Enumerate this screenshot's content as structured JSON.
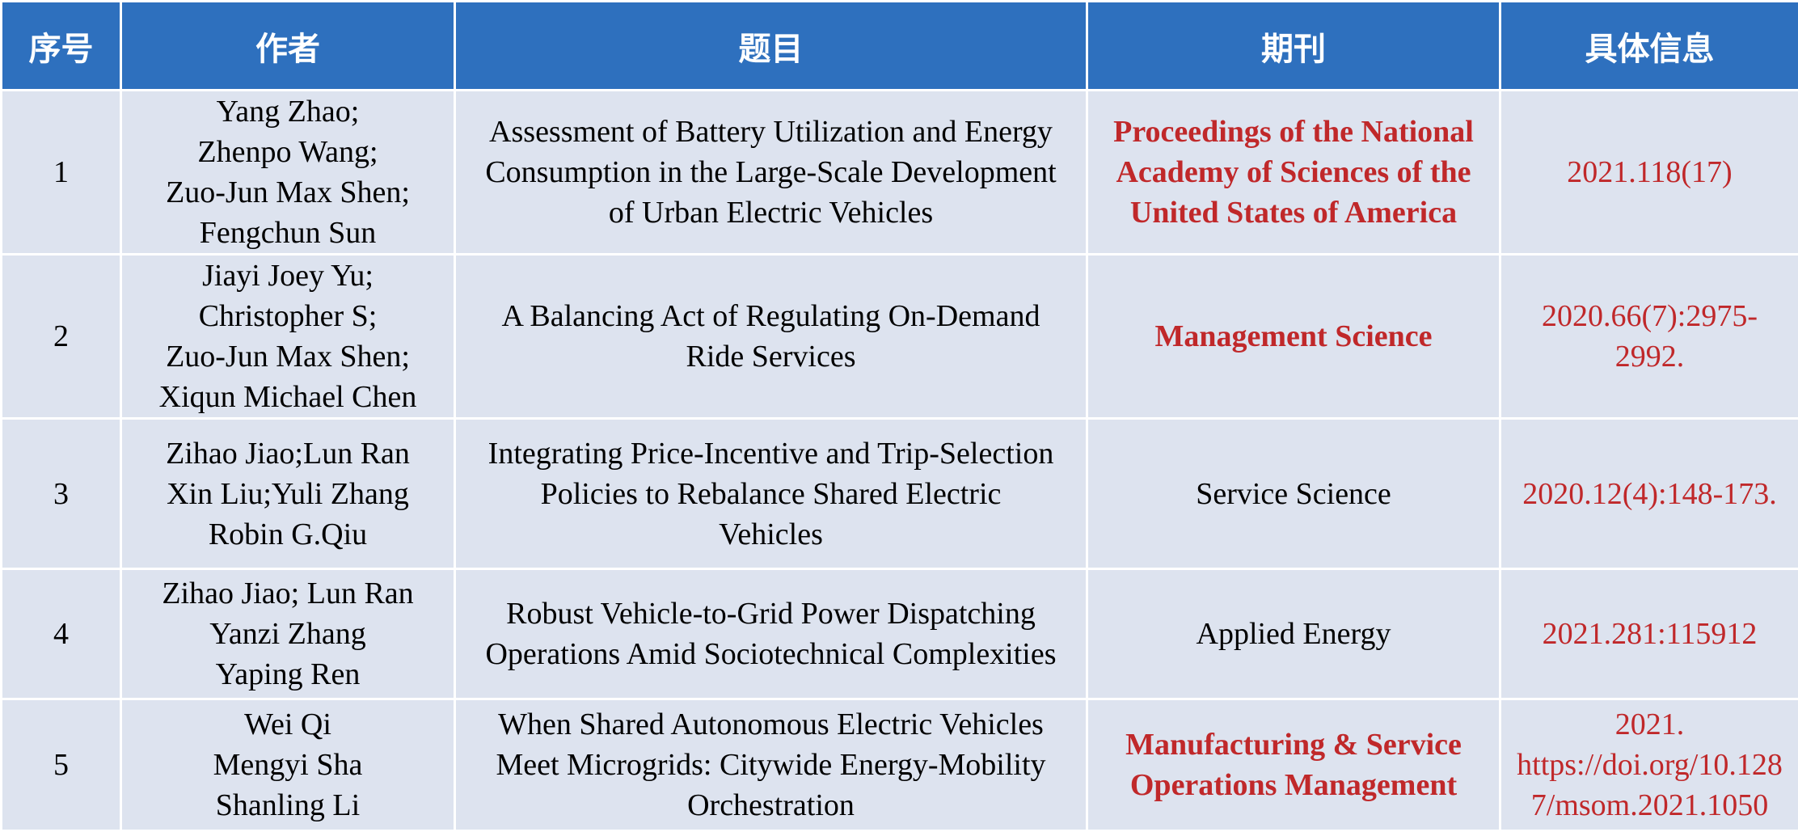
{
  "headers": [
    "序号",
    "作者",
    "题目",
    "期刊",
    "具体信息"
  ],
  "colors": {
    "header_bg": "#2E70BE",
    "row_bg": "#DDE3EF",
    "accent_red": "#C0282A"
  },
  "rows": [
    {
      "num": "1",
      "authors": [
        "Yang Zhao;",
        "Zhenpo Wang;",
        "Zuo-Jun Max Shen;",
        "Fengchun Sun"
      ],
      "title": [
        "Assessment of Battery Utilization and Energy",
        "Consumption in the Large-Scale Development",
        "of Urban Electric Vehicles"
      ],
      "journal": [
        "Proceedings of the National",
        "Academy of Sciences of the",
        "United States of America"
      ],
      "info": [
        "2021.118(17)"
      ]
    },
    {
      "num": "2",
      "authors": [
        "Jiayi Joey Yu;",
        "Christopher S;",
        "Zuo-Jun Max Shen;",
        "Xiqun Michael Chen"
      ],
      "title": [
        "A Balancing Act of Regulating On-Demand",
        "Ride Services"
      ],
      "journal": [
        "Management Science"
      ],
      "info": [
        "2020.66(7):2975-",
        "2992."
      ]
    },
    {
      "num": "3",
      "authors": [
        "Zihao Jiao;Lun Ran",
        "Xin Liu;Yuli Zhang",
        "Robin G.Qiu"
      ],
      "title": [
        "Integrating Price-Incentive and Trip-Selection",
        "Policies to Rebalance Shared Electric",
        "Vehicles"
      ],
      "journal": [
        "Service Science"
      ],
      "info": [
        "2020.12(4):148-173."
      ]
    },
    {
      "num": "4",
      "authors": [
        "Zihao Jiao; Lun Ran",
        "Yanzi Zhang",
        "Yaping Ren"
      ],
      "title": [
        "Robust Vehicle-to-Grid Power Dispatching",
        "Operations Amid Sociotechnical Complexities"
      ],
      "journal": [
        "Applied Energy"
      ],
      "info": [
        "2021.281:115912"
      ]
    },
    {
      "num": "5",
      "authors": [
        "Wei Qi",
        "Mengyi Sha",
        "Shanling Li"
      ],
      "title": [
        "When Shared Autonomous Electric Vehicles",
        "Meet Microgrids: Citywide Energy-Mobility",
        "Orchestration"
      ],
      "journal": [
        "Manufacturing & Service",
        "Operations Management"
      ],
      "info": [
        "2021.",
        "https://doi.org/10.128",
        "7/msom.2021.1050"
      ]
    }
  ]
}
